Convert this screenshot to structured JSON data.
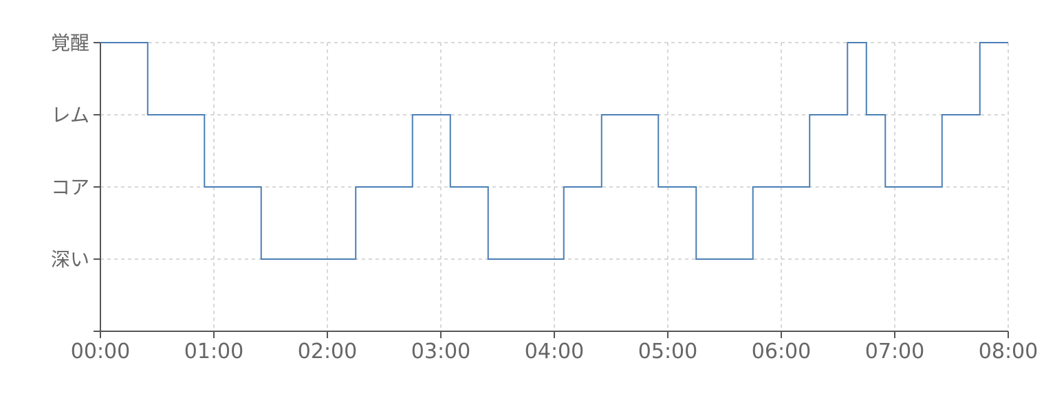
{
  "chart_data": {
    "type": "line",
    "step": true,
    "title": "",
    "xlabel": "",
    "ylabel": "",
    "grid": true,
    "legend": "none",
    "x_ticks": [
      "00:00",
      "01:00",
      "02:00",
      "03:00",
      "04:00",
      "05:00",
      "06:00",
      "07:00",
      "08:00"
    ],
    "y_categories": [
      "深い",
      "コア",
      "レム",
      "覚醒"
    ],
    "xlim": [
      "00:00",
      "08:00"
    ],
    "series": [
      {
        "color": "#4a7fb5",
        "x": [
          "00:00",
          "00:25",
          "00:55",
          "01:25",
          "02:15",
          "02:45",
          "03:05",
          "03:25",
          "04:05",
          "04:25",
          "04:55",
          "05:15",
          "05:45",
          "06:15",
          "06:35",
          "06:45",
          "06:55",
          "07:25",
          "07:45",
          "08:00"
        ],
        "y": [
          "覚醒",
          "レム",
          "コア",
          "深い",
          "コア",
          "レム",
          "コア",
          "深い",
          "コア",
          "レム",
          "コア",
          "深い",
          "コア",
          "レム",
          "覚醒",
          "レム",
          "コア",
          "レム",
          "覚醒",
          "覚醒"
        ]
      }
    ]
  },
  "colors": {
    "line": "#4a7fb5",
    "axis": "#555555",
    "grid": "#cccccc",
    "text": "#666666"
  }
}
